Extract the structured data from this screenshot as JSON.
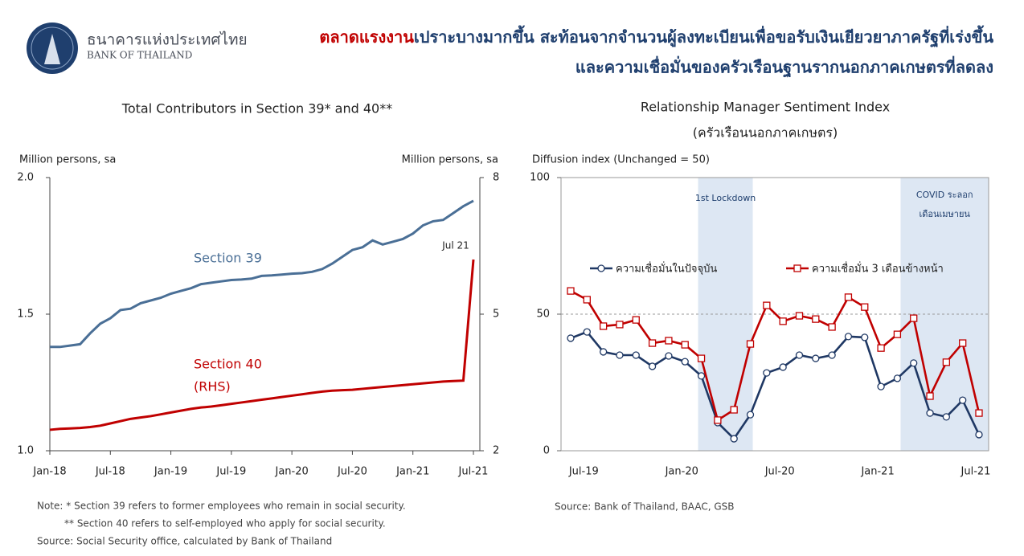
{
  "header": {
    "org_thai": "ธนาคารแห่งประเทศไทย",
    "org_en": "BANK OF THAILAND",
    "headline_highlight": "ตลาดแรงงาน",
    "headline_rest": "เปราะบางมากขึ้น สะท้อนจากจำนวนผู้ลงทะเบียนเพื่อขอรับเงินเยียวยาภาครัฐที่เร่งขึ้น",
    "headline_line2": "และความเชื่อมั่นของครัวเรือนฐานรากนอกภาคเกษตรที่ลดลง"
  },
  "chart_data": [
    {
      "type": "line",
      "title": "Total Contributors in Section 39* and 40**",
      "y_label": "Million persons, sa",
      "y2_label": "Million persons, sa",
      "categories": [
        "Jan-18",
        null,
        null,
        null,
        null,
        null,
        "Jul-18",
        null,
        null,
        null,
        null,
        null,
        "Jan-19",
        null,
        null,
        null,
        null,
        null,
        "Jul-19",
        null,
        null,
        null,
        null,
        null,
        "Jan-20",
        null,
        null,
        null,
        null,
        null,
        "Jul-20",
        null,
        null,
        null,
        null,
        null,
        "Jan-21",
        null,
        null,
        null,
        null,
        null,
        "Jul-21"
      ],
      "series": [
        {
          "name": "Section 39",
          "color": "#4a6f96",
          "axis": "y",
          "values": [
            1.38,
            1.38,
            1.385,
            1.39,
            1.43,
            1.465,
            1.485,
            1.515,
            1.52,
            1.54,
            1.55,
            1.56,
            1.575,
            1.585,
            1.595,
            1.61,
            1.615,
            1.62,
            1.625,
            1.627,
            1.63,
            1.64,
            1.642,
            1.645,
            1.648,
            1.65,
            1.655,
            1.665,
            1.685,
            1.71,
            1.735,
            1.745,
            1.77,
            1.755,
            1.765,
            1.775,
            1.795,
            1.825,
            1.84,
            1.845,
            1.87,
            1.895,
            1.915
          ]
        },
        {
          "name": "Section 40",
          "color": "#c00000",
          "axis": "y2",
          "values": [
            2.46,
            2.48,
            2.49,
            2.5,
            2.52,
            2.55,
            2.6,
            2.65,
            2.7,
            2.73,
            2.76,
            2.8,
            2.84,
            2.88,
            2.92,
            2.95,
            2.97,
            3.0,
            3.03,
            3.06,
            3.09,
            3.12,
            3.15,
            3.18,
            3.21,
            3.24,
            3.27,
            3.3,
            3.32,
            3.33,
            3.34,
            3.36,
            3.38,
            3.4,
            3.42,
            3.44,
            3.46,
            3.48,
            3.5,
            3.52,
            3.53,
            3.54,
            6.2
          ]
        }
      ],
      "annotations": [
        "(RHS)",
        "Jul 21"
      ],
      "ylim": [
        1,
        2
      ],
      "yticks": [
        {
          "value": 1,
          "label": "1.0"
        },
        1.5,
        {
          "value": 2,
          "label": "2.0"
        }
      ],
      "y2lim": [
        2,
        8
      ],
      "y2ticks": [
        2,
        5,
        8
      ],
      "notes": [
        "Note: * Section 39 refers to former employees who remain in social security.",
        "** Section 40 refers to self-employed who apply for social security.",
        "Source: Social Security office, calculated by Bank of Thailand"
      ]
    },
    {
      "type": "line",
      "title": "Relationship Manager Sentiment Index",
      "subtitle": "(ครัวเรือนนอกภาคเกษตร)",
      "y_label": "Diffusion index (Unchanged = 50)",
      "categories": [
        null,
        "Jul-19",
        null,
        null,
        null,
        null,
        null,
        "Jan-20",
        null,
        null,
        null,
        null,
        null,
        "Jul-20",
        null,
        null,
        null,
        null,
        null,
        "Jan-21",
        null,
        null,
        null,
        null,
        null,
        "Jul-21"
      ],
      "series": [
        {
          "name": "ความเชื่อมั่นในปัจจุบัน",
          "color": "#1f3864",
          "marker": "circle",
          "values": [
            41.2,
            43.5,
            36.2,
            35,
            35,
            30.9,
            34.7,
            32.6,
            27.4,
            10.3,
            4.4,
            13.2,
            28.5,
            30.6,
            35,
            33.8,
            35,
            41.8,
            41.5,
            23.5,
            26.5,
            32.1,
            13.8,
            12.4,
            18.5,
            5.9
          ]
        },
        {
          "name": "ความเชื่อมั่น 3 เดือนข้างหน้า",
          "color": "#c00000",
          "marker": "square",
          "values": [
            58.5,
            55.3,
            45.6,
            46.2,
            47.9,
            39.4,
            40.3,
            38.8,
            33.8,
            11.2,
            15,
            39.1,
            53.2,
            47.4,
            49.4,
            48.2,
            45.3,
            56.2,
            52.6,
            37.6,
            42.6,
            48.5,
            20,
            32.4,
            39.4,
            13.8
          ]
        }
      ],
      "annotations": [
        "1st Lockdown",
        "COVID ระลอก",
        "เดือนเมษายน"
      ],
      "ylim": [
        0,
        100
      ],
      "yticks": [
        0,
        50,
        100
      ],
      "reference_line": 50,
      "notes": [
        "Source: Bank of Thailand, BAAC, GSB"
      ]
    }
  ]
}
